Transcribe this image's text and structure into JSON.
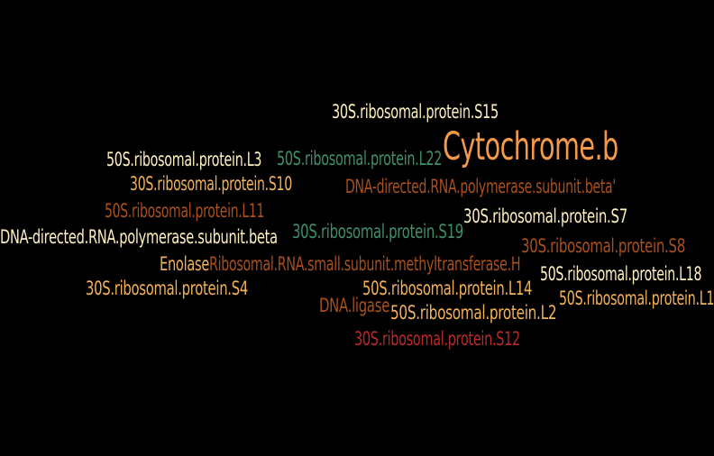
{
  "words": [
    {
      "text": "30S.ribosomal.protein.S15",
      "color": "#FFF0C0"
    },
    {
      "text": "50S.ribosomal.protein.L3",
      "color": "#FFF0C0"
    },
    {
      "text": "50S.ribosomal.protein.L22",
      "color": "#3F8F6B"
    },
    {
      "text": "Cytochrome.b",
      "color": "#F39A4A"
    },
    {
      "text": "30S.ribosomal.protein.S10",
      "color": "#F3B257"
    },
    {
      "text": "DNA-directed.RNA.polymerase.subunit.beta'",
      "color": "#A8501E"
    },
    {
      "text": "50S.ribosomal.protein.L11",
      "color": "#A8501E"
    },
    {
      "text": "30S.ribosomal.protein.S7",
      "color": "#FFF0C0"
    },
    {
      "text": "DNA-directed.RNA.polymerase.subunit.beta",
      "color": "#FFF0C0"
    },
    {
      "text": "30S.ribosomal.protein.S19",
      "color": "#3F8F6B"
    },
    {
      "text": "30S.ribosomal.protein.S8",
      "color": "#A8501E"
    },
    {
      "text": "Enolase",
      "color": "#F3B257"
    },
    {
      "text": "Ribosomal.RNA.small.subunit.methyltransferase.H",
      "color": "#A8501E"
    },
    {
      "text": "50S.ribosomal.protein.L18",
      "color": "#FFF0C0"
    },
    {
      "text": "30S.ribosomal.protein.S4",
      "color": "#F3B257"
    },
    {
      "text": "50S.ribosomal.protein.L14",
      "color": "#F3B257"
    },
    {
      "text": "50S.ribosomal.protein.L1",
      "color": "#F3B257"
    },
    {
      "text": "DNA.ligase",
      "color": "#A8501E"
    },
    {
      "text": "50S.ribosomal.protein.L2",
      "color": "#F3B257"
    },
    {
      "text": "30S.ribosomal.protein.S12",
      "color": "#B8292B"
    }
  ]
}
